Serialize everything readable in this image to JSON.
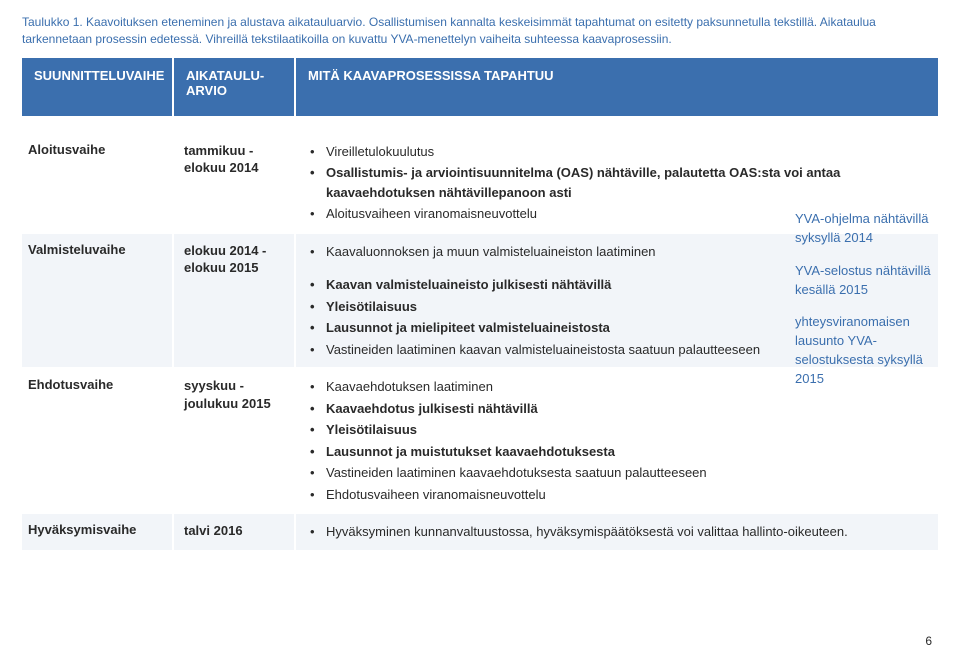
{
  "caption_line1": "Taulukko 1. Kaavoituksen eteneminen ja alustava aikatauluarvio. Osallistumisen kannalta keskeisimmät tapahtumat on esitetty paksunnetulla tekstillä. Aikataulua",
  "caption_line2": "tarkennetaan prosessin edetessä. Vihreillä tekstilaatikoilla on kuvattu YVA-menettelyn vaiheita suhteessa kaavaprosessiin.",
  "headers": {
    "col1": "SUUNNITTELUVAIHE",
    "col2_l1": "AIKATAULU-",
    "col2_l2": "ARVIO",
    "col3": "MITÄ KAAVAPROSESSISSA TAPAHTUU"
  },
  "rows": [
    {
      "phase": "Aloitusvaihe",
      "sched_l1": "tammikuu -",
      "sched_l2": "elokuu 2014",
      "items": [
        {
          "t": "Vireilletulokuulutus",
          "b": false
        },
        {
          "t": "Osallistumis- ja arviointisuunnitelma (OAS) nähtäville, palautetta OAS:sta voi antaa kaavaehdotuksen nähtävillepanoon asti",
          "b": true
        },
        {
          "t": "Aloitusvaiheen viranomaisneuvottelu",
          "b": false
        }
      ]
    },
    {
      "phase": "Valmisteluvaihe",
      "sched_l1": "elokuu 2014 -",
      "sched_l2": "elokuu 2015",
      "items": [
        {
          "t": "Kaavaluonnoksen ja muun valmisteluaineiston laatiminen",
          "b": false
        },
        {
          "t": "Kaavan valmisteluaineisto julkisesti nähtävillä",
          "b": true
        },
        {
          "t": "Yleisötilaisuus",
          "b": true
        },
        {
          "t": "Lausunnot ja mielipiteet valmisteluaineistosta",
          "b": true
        },
        {
          "t": "Vastineiden laatiminen kaavan valmisteluaineistosta saatuun palautteeseen",
          "b": false
        }
      ]
    },
    {
      "phase": "Ehdotusvaihe",
      "sched_l1": "syyskuu  -",
      "sched_l2": "joulukuu 2015",
      "items": [
        {
          "t": "Kaavaehdotuksen laatiminen",
          "b": false
        },
        {
          "t": "Kaavaehdotus julkisesti nähtävillä",
          "b": true
        },
        {
          "t": "Yleisötilaisuus",
          "b": true
        },
        {
          "t": "Lausunnot ja muistutukset kaavaehdotuksesta",
          "b": true
        },
        {
          "t": "Vastineiden laatiminen kaavaehdotuksesta saatuun palautteeseen",
          "b": false
        },
        {
          "t": "Ehdotusvaiheen viranomaisneuvottelu",
          "b": false
        }
      ]
    },
    {
      "phase": "Hyväksymisvaihe",
      "sched_l1": "talvi 2016",
      "sched_l2": "",
      "items": [
        {
          "t": "Hyväksyminen kunnanvaltuustossa, hyväksymispäätöksestä voi valittaa hallinto-oikeuteen.",
          "b": false
        }
      ]
    }
  ],
  "side": {
    "n1": "YVA-ohjelma nähtävillä syksyllä 2014",
    "n2": "YVA-selostus nähtävillä kesällä 2015",
    "n3": "yhteysviranomaisen lausunto YVA-selostuksesta syksyllä 2015"
  },
  "page_number": "6",
  "colors": {
    "header_bg": "#3b6fae",
    "caption_text": "#3b6fae",
    "zebra_alt": "#f2f5f9"
  }
}
